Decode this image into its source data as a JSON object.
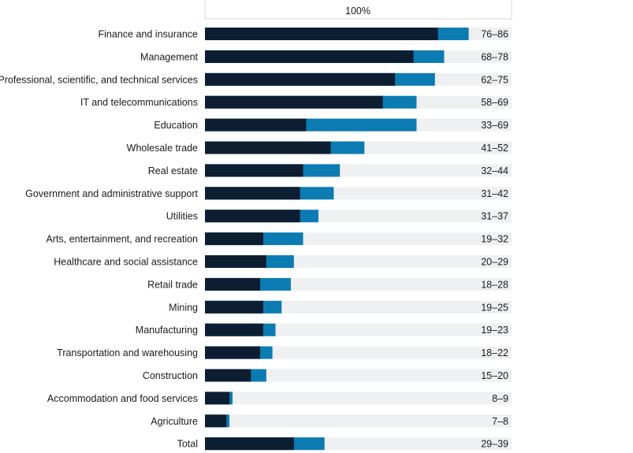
{
  "chart_data": {
    "type": "bar",
    "top_label": "100%",
    "categories": [
      "Finance and insurance",
      "Management",
      "Professional, scientific, and technical services",
      "IT and telecommunications",
      "Education",
      "Wholesale trade",
      "Real estate",
      "Government and administrative support",
      "Utilities",
      "Arts, entertainment, and recreation",
      "Healthcare and social assistance",
      "Retail trade",
      "Mining",
      "Manufacturing",
      "Transportation and warehousing",
      "Construction",
      "Accommodation and food services",
      "Agriculture",
      "Total"
    ],
    "range_labels": [
      "76–86",
      "68–78",
      "62–75",
      "58–69",
      "33–69",
      "41–52",
      "32–44",
      "31–42",
      "31–37",
      "19–32",
      "20–29",
      "18–28",
      "19–25",
      "19–23",
      "18–22",
      "15–20",
      "8–9",
      "7–8",
      "29–39"
    ],
    "series": [
      {
        "values": [
          76,
          68,
          62,
          58,
          33,
          41,
          32,
          31,
          31,
          19,
          20,
          18,
          19,
          19,
          18,
          15,
          8,
          7,
          29
        ]
      },
      {
        "values": [
          86,
          78,
          75,
          69,
          69,
          52,
          44,
          42,
          37,
          32,
          29,
          28,
          25,
          23,
          22,
          20,
          9,
          8,
          39
        ]
      }
    ],
    "xlim": [
      0,
      100
    ],
    "colors": {
      "low": "#0d1e33",
      "high": "#0b7bb2",
      "track": "#eef0f2",
      "gridline": "#d8d8d8"
    }
  }
}
